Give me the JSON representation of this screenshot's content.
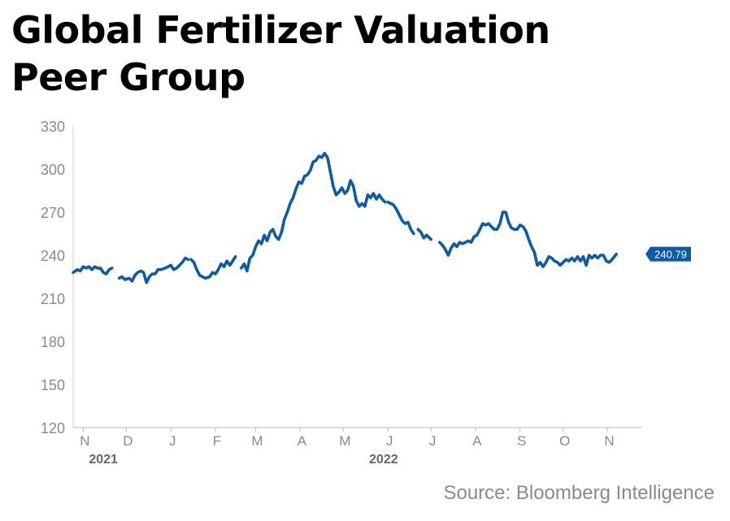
{
  "title_line1": "Global Fertilizer Valuation",
  "title_line2": "Peer Group",
  "source": "Source: Bloomberg Intelligence",
  "colors": {
    "line": "#0d5aa7",
    "label_bg": "#0d5aa7",
    "axis_text": "#8a8a8a",
    "year_text": "#666666"
  },
  "chart_data": {
    "type": "line",
    "title": "Global Fertilizer Valuation Peer Group",
    "ylim": [
      120,
      330
    ],
    "yticks": [
      120,
      150,
      180,
      210,
      240,
      270,
      300,
      330
    ],
    "xlim": [
      "2021-10-25",
      "2022-11-25"
    ],
    "xticks": [
      {
        "label": "N",
        "date": "2021-11-01"
      },
      {
        "label": "D",
        "date": "2021-12-01"
      },
      {
        "label": "J",
        "date": "2022-01-01"
      },
      {
        "label": "F",
        "date": "2022-02-01"
      },
      {
        "label": "M",
        "date": "2022-03-01"
      },
      {
        "label": "A",
        "date": "2022-04-01"
      },
      {
        "label": "M",
        "date": "2022-05-01"
      },
      {
        "label": "J",
        "date": "2022-06-01"
      },
      {
        "label": "J",
        "date": "2022-07-01"
      },
      {
        "label": "A",
        "date": "2022-08-01"
      },
      {
        "label": "S",
        "date": "2022-09-01"
      },
      {
        "label": "O",
        "date": "2022-10-01"
      },
      {
        "label": "N",
        "date": "2022-11-01"
      }
    ],
    "year_labels": [
      {
        "label": "2021",
        "date": "2021-11-15"
      },
      {
        "label": "2022",
        "date": "2022-05-29"
      }
    ],
    "last_value_label": "240.79",
    "grid": false,
    "series": [
      {
        "segments": [
          [
            [
              "2021-10-25",
              228
            ],
            [
              "2021-10-28",
              230
            ],
            [
              "2021-10-30",
              229
            ],
            [
              "2021-11-01",
              232
            ],
            [
              "2021-11-03",
              231
            ],
            [
              "2021-11-05",
              232
            ],
            [
              "2021-11-07",
              230
            ],
            [
              "2021-11-09",
              232
            ],
            [
              "2021-11-11",
              231
            ],
            [
              "2021-11-13",
              231
            ],
            [
              "2021-11-15",
              228
            ],
            [
              "2021-11-17",
              227
            ],
            [
              "2021-11-19",
              230
            ],
            [
              "2021-11-21",
              231
            ]
          ],
          [
            [
              "2021-11-26",
              224
            ],
            [
              "2021-11-28",
              225
            ],
            [
              "2021-11-30",
              223
            ],
            [
              "2021-12-03",
              224
            ],
            [
              "2021-12-05",
              222
            ],
            [
              "2021-12-07",
              226
            ],
            [
              "2021-12-09",
              228
            ],
            [
              "2021-12-11",
              229
            ],
            [
              "2021-12-13",
              228
            ],
            [
              "2021-12-15",
              221
            ],
            [
              "2021-12-17",
              225
            ],
            [
              "2021-12-19",
              227
            ],
            [
              "2021-12-21",
              227
            ],
            [
              "2021-12-23",
              230
            ],
            [
              "2021-12-25",
              230
            ],
            [
              "2021-12-28",
              231
            ],
            [
              "2021-12-30",
              232
            ],
            [
              "2022-01-01",
              233
            ],
            [
              "2022-01-03",
              230
            ],
            [
              "2022-01-05",
              231
            ],
            [
              "2022-01-07",
              233
            ],
            [
              "2022-01-09",
              235
            ],
            [
              "2022-01-11",
              238
            ],
            [
              "2022-01-13",
              237
            ]
          ],
          [
            [
              "2022-01-15",
              237
            ],
            [
              "2022-01-17",
              235
            ],
            [
              "2022-01-19",
              230
            ],
            [
              "2022-01-21",
              226
            ],
            [
              "2022-01-23",
              225
            ],
            [
              "2022-01-25",
              224
            ],
            [
              "2022-01-28",
              225
            ],
            [
              "2022-01-30",
              228
            ],
            [
              "2022-02-01",
              227
            ],
            [
              "2022-02-03",
              230
            ],
            [
              "2022-02-05",
              234
            ],
            [
              "2022-02-07",
              232
            ],
            [
              "2022-02-09",
              236
            ],
            [
              "2022-02-11",
              233
            ],
            [
              "2022-02-13",
              236
            ],
            [
              "2022-02-15",
              239
            ]
          ],
          [
            [
              "2022-02-19",
              231
            ],
            [
              "2022-02-21",
              234
            ],
            [
              "2022-02-23",
              229
            ],
            [
              "2022-02-25",
              238
            ],
            [
              "2022-02-27",
              240
            ],
            [
              "2022-03-01",
              246
            ],
            [
              "2022-03-03",
              250
            ],
            [
              "2022-03-05",
              248
            ],
            [
              "2022-03-07",
              254
            ],
            [
              "2022-03-09",
              250
            ],
            [
              "2022-03-11",
              256
            ],
            [
              "2022-03-13",
              258
            ],
            [
              "2022-03-15",
              253
            ],
            [
              "2022-03-17",
              251
            ],
            [
              "2022-03-19",
              256
            ],
            [
              "2022-03-21",
              265
            ],
            [
              "2022-03-23",
              270
            ],
            [
              "2022-03-25",
              276
            ],
            [
              "2022-03-27",
              280
            ],
            [
              "2022-03-29",
              286
            ],
            [
              "2022-03-31",
              291
            ],
            [
              "2022-04-02",
              290
            ],
            [
              "2022-04-04",
              295
            ],
            [
              "2022-04-06",
              296
            ],
            [
              "2022-04-08",
              299
            ],
            [
              "2022-04-10",
              305
            ],
            [
              "2022-04-12",
              306
            ],
            [
              "2022-04-14",
              309
            ],
            [
              "2022-04-16",
              308
            ],
            [
              "2022-04-18",
              311
            ],
            [
              "2022-04-20",
              308
            ],
            [
              "2022-04-22",
              298
            ],
            [
              "2022-04-24",
              288
            ],
            [
              "2022-04-26",
              282
            ],
            [
              "2022-04-28",
              284
            ],
            [
              "2022-04-30",
              287
            ],
            [
              "2022-05-02",
              283
            ],
            [
              "2022-05-04",
              285
            ],
            [
              "2022-05-06",
              292
            ],
            [
              "2022-05-08",
              288
            ],
            [
              "2022-05-10",
              278
            ],
            [
              "2022-05-12",
              274
            ],
            [
              "2022-05-14",
              276
            ],
            [
              "2022-05-16",
              274
            ],
            [
              "2022-05-18",
              282
            ],
            [
              "2022-05-20",
              280
            ],
            [
              "2022-05-22",
              283
            ],
            [
              "2022-05-24",
              279
            ],
            [
              "2022-05-26",
              282
            ],
            [
              "2022-05-28",
              279
            ],
            [
              "2022-05-30",
              277
            ]
          ],
          [
            [
              "2022-06-01",
              277
            ],
            [
              "2022-06-03",
              276
            ],
            [
              "2022-06-05",
              275
            ],
            [
              "2022-06-07",
              272
            ],
            [
              "2022-06-09",
              268
            ],
            [
              "2022-06-11",
              264
            ],
            [
              "2022-06-13",
              262
            ],
            [
              "2022-06-15",
              263
            ],
            [
              "2022-06-17",
              258
            ],
            [
              "2022-06-19",
              255
            ]
          ],
          [
            [
              "2022-06-22",
              258
            ],
            [
              "2022-06-24",
              256
            ],
            [
              "2022-06-26",
              252
            ],
            [
              "2022-06-28",
              254
            ],
            [
              "2022-07-01",
              251
            ]
          ],
          [
            [
              "2022-07-07",
              249
            ],
            [
              "2022-07-09",
              247
            ],
            [
              "2022-07-11",
              244
            ],
            [
              "2022-07-13",
              240
            ],
            [
              "2022-07-15",
              245
            ],
            [
              "2022-07-17",
              248
            ],
            [
              "2022-07-19",
              246
            ],
            [
              "2022-07-21",
              249
            ],
            [
              "2022-07-23",
              248
            ],
            [
              "2022-07-25",
              249
            ],
            [
              "2022-07-27",
              250
            ],
            [
              "2022-07-29",
              249
            ],
            [
              "2022-07-31",
              253
            ],
            [
              "2022-08-02",
              254
            ],
            [
              "2022-08-04",
              258
            ],
            [
              "2022-08-06",
              262
            ],
            [
              "2022-08-08",
              261
            ],
            [
              "2022-08-10",
              262
            ],
            [
              "2022-08-12",
              260
            ],
            [
              "2022-08-14",
              258
            ],
            [
              "2022-08-16",
              258
            ],
            [
              "2022-08-18",
              262
            ],
            [
              "2022-08-20",
              270
            ],
            [
              "2022-08-22",
              270
            ],
            [
              "2022-08-24",
              263
            ],
            [
              "2022-08-26",
              259
            ],
            [
              "2022-08-28",
              258
            ],
            [
              "2022-08-30",
              258
            ],
            [
              "2022-09-01",
              261
            ],
            [
              "2022-09-03",
              260
            ],
            [
              "2022-09-05",
              257
            ],
            [
              "2022-09-07",
              251
            ],
            [
              "2022-09-09",
              246
            ],
            [
              "2022-09-11",
              242
            ],
            [
              "2022-09-13",
              233
            ],
            [
              "2022-09-15",
              235
            ],
            [
              "2022-09-17",
              232
            ],
            [
              "2022-09-19",
              235
            ],
            [
              "2022-09-21",
              239
            ],
            [
              "2022-09-23",
              238
            ],
            [
              "2022-09-25",
              236
            ],
            [
              "2022-09-27",
              235
            ],
            [
              "2022-09-29",
              233
            ],
            [
              "2022-10-01",
              235
            ],
            [
              "2022-10-03",
              237
            ],
            [
              "2022-10-05",
              236
            ],
            [
              "2022-10-07",
              238
            ],
            [
              "2022-10-09",
              236
            ],
            [
              "2022-10-11",
              239
            ],
            [
              "2022-10-13",
              236
            ],
            [
              "2022-10-15",
              239
            ],
            [
              "2022-10-17",
              233
            ],
            [
              "2022-10-19",
              240
            ],
            [
              "2022-10-21",
              238
            ],
            [
              "2022-10-23",
              240
            ],
            [
              "2022-10-25",
              238
            ],
            [
              "2022-10-27",
              240
            ],
            [
              "2022-10-29",
              240
            ],
            [
              "2022-10-31",
              236
            ],
            [
              "2022-11-02",
              235
            ],
            [
              "2022-11-04",
              237
            ],
            [
              "2022-11-07",
              240.79
            ]
          ]
        ]
      }
    ]
  }
}
